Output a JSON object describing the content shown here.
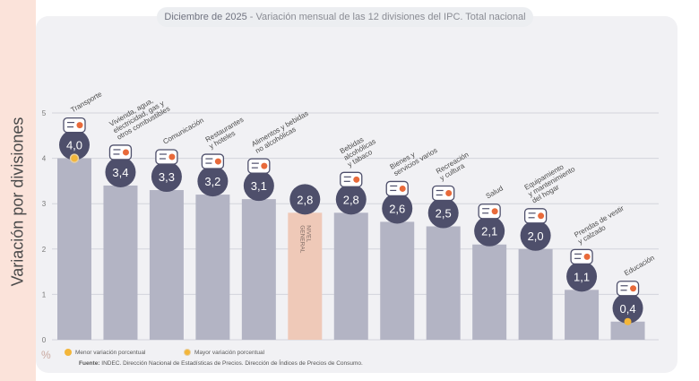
{
  "title_bold": "Diciembre de 2025",
  "title_rest": "Variación mensual de las 12 divisiones del IPC. Total nacional",
  "legend": {
    "min_label": "Menor variación porcentual",
    "max_label": "Mayor variación porcentual"
  },
  "source_label": "Fuente:",
  "source_text": "INDEC. Dirección Nacional de Estadísticas de Precios. Dirección de Índices de Precios de Consumo.",
  "unit": "%",
  "colors": {
    "bar": "#b3b4c4",
    "bar_general": "#efc9b8",
    "bubble": "#4e4f6b",
    "marker": "#f3b63a"
  },
  "chart_data": {
    "type": "bar",
    "ylabel": "Variación por divisiones",
    "ylim": [
      0,
      5
    ],
    "yticks": [
      "0",
      "1",
      "2",
      "3",
      "4",
      "5"
    ],
    "grid": true,
    "categories": [
      "Transporte",
      "Vivienda, agua, electricidad, gas y otros combustibles",
      "Comunicación",
      "Restaurantes y hoteles",
      "Alimentos y bebidas no alcohólicas",
      "NIVEL GENERAL",
      "Bebidas alcohólicas y tabaco",
      "Bienes y servicios varios",
      "Recreación y cultura",
      "Salud",
      "Equipamiento y mantenimiento del hogar",
      "Prendas de vestir y calzado",
      "Educación"
    ],
    "values": [
      4.0,
      3.4,
      3.3,
      3.2,
      3.1,
      2.8,
      2.8,
      2.6,
      2.5,
      2.1,
      2.0,
      1.1,
      0.4
    ],
    "data_labels": [
      "4,0",
      "3,4",
      "3,3",
      "3,2",
      "3,1",
      "2,8",
      "2,8",
      "2,6",
      "2,5",
      "2,1",
      "2,0",
      "1,1",
      "0,4"
    ],
    "category_label_lines": [
      [
        "Transporte"
      ],
      [
        "Vivienda, agua,",
        "electricidad, gas y",
        "otros combustibles"
      ],
      [
        "Comunicación"
      ],
      [
        "Restaurantes",
        "y hoteles"
      ],
      [
        "Alimentos y bebidas",
        "no alcohólicas"
      ],
      [
        "NIVEL",
        "GENERAL"
      ],
      [
        "Bebidas",
        "alcohólicas",
        "y tabaco"
      ],
      [
        "Bienes y",
        "servicios varios"
      ],
      [
        "Recreación",
        "y cultura"
      ],
      [
        "Salud"
      ],
      [
        "Equipamiento",
        "y mantenimiento",
        "del hogar"
      ],
      [
        "Prendas de vestir",
        "y calzado"
      ],
      [
        "Educación"
      ]
    ],
    "icons": [
      "bus-icon",
      "house-utilities-icon",
      "phone-icon",
      "restaurant-icon",
      "groceries-icon",
      "none",
      "drinks-icon",
      "toiletries-icon",
      "beach-icon",
      "health-cross-icon",
      "home-appliance-icon",
      "clothing-icon",
      "books-icon"
    ],
    "max_index": 0,
    "min_index": 12
  }
}
